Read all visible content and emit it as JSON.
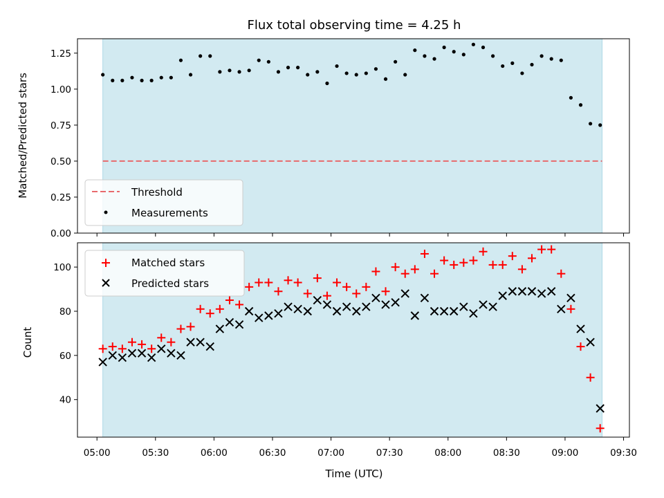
{
  "chart_data": [
    {
      "type": "scatter",
      "title": "Flux total observing time = 4.25 h",
      "ylabel": "Matched/Predicted stars",
      "xlabel": "",
      "ylim": [
        0,
        1.35
      ],
      "yticks": [
        "0.00",
        "0.25",
        "0.50",
        "0.75",
        "1.00",
        "1.25"
      ],
      "yticks_values": [
        0,
        0.25,
        0.5,
        0.75,
        1.0,
        1.25
      ],
      "xlim": [
        "04:50",
        "09:33"
      ],
      "observing_window": [
        "05:03",
        "09:19"
      ],
      "threshold": 0.5,
      "legend_location": "lower-left",
      "legend": [
        "Threshold",
        "Measurements"
      ],
      "series": [
        {
          "name": "Measurements",
          "color": "#000000",
          "marker": "dot",
          "x": [
            "05:03",
            "05:08",
            "05:13",
            "05:18",
            "05:23",
            "05:28",
            "05:33",
            "05:38",
            "05:43",
            "05:48",
            "05:53",
            "05:58",
            "06:03",
            "06:08",
            "06:13",
            "06:18",
            "06:23",
            "06:28",
            "06:33",
            "06:38",
            "06:43",
            "06:48",
            "06:53",
            "06:58",
            "07:03",
            "07:08",
            "07:13",
            "07:18",
            "07:23",
            "07:28",
            "07:33",
            "07:38",
            "07:43",
            "07:48",
            "07:53",
            "07:58",
            "08:03",
            "08:08",
            "08:13",
            "08:18",
            "08:23",
            "08:28",
            "08:33",
            "08:38",
            "08:43",
            "08:48",
            "08:53",
            "08:58",
            "09:03",
            "09:08",
            "09:13",
            "09:18"
          ],
          "y": [
            1.1,
            1.06,
            1.06,
            1.08,
            1.06,
            1.06,
            1.08,
            1.08,
            1.2,
            1.1,
            1.23,
            1.23,
            1.12,
            1.13,
            1.12,
            1.13,
            1.2,
            1.19,
            1.12,
            1.15,
            1.15,
            1.1,
            1.12,
            1.04,
            1.16,
            1.11,
            1.1,
            1.11,
            1.14,
            1.07,
            1.19,
            1.1,
            1.27,
            1.23,
            1.21,
            1.29,
            1.26,
            1.24,
            1.31,
            1.29,
            1.23,
            1.16,
            1.18,
            1.11,
            1.17,
            1.23,
            1.21,
            1.2,
            0.94,
            0.89,
            0.76,
            0.75
          ]
        }
      ]
    },
    {
      "type": "scatter",
      "title": "",
      "ylabel": "Count",
      "xlabel": "Time (UTC)",
      "ylim": [
        23,
        111
      ],
      "yticks": [
        "40",
        "60",
        "80",
        "100"
      ],
      "yticks_values": [
        40,
        60,
        80,
        100
      ],
      "xlim": [
        "04:50",
        "09:33"
      ],
      "xticks": [
        "05:00",
        "05:30",
        "06:00",
        "06:30",
        "07:00",
        "07:30",
        "08:00",
        "08:30",
        "09:00",
        "09:30"
      ],
      "observing_window": [
        "05:03",
        "09:19"
      ],
      "legend_location": "upper-left",
      "legend": [
        "Matched stars",
        "Predicted stars"
      ],
      "series": [
        {
          "name": "Matched stars",
          "color": "#ff0000",
          "marker": "plus",
          "x": [
            "05:03",
            "05:08",
            "05:13",
            "05:18",
            "05:23",
            "05:28",
            "05:33",
            "05:38",
            "05:43",
            "05:48",
            "05:53",
            "05:58",
            "06:03",
            "06:08",
            "06:13",
            "06:18",
            "06:23",
            "06:28",
            "06:33",
            "06:38",
            "06:43",
            "06:48",
            "06:53",
            "06:58",
            "07:03",
            "07:08",
            "07:13",
            "07:18",
            "07:23",
            "07:28",
            "07:33",
            "07:38",
            "07:43",
            "07:48",
            "07:53",
            "07:58",
            "08:03",
            "08:08",
            "08:13",
            "08:18",
            "08:23",
            "08:28",
            "08:33",
            "08:38",
            "08:43",
            "08:48",
            "08:53",
            "08:58",
            "09:03",
            "09:08",
            "09:13",
            "09:18"
          ],
          "y": [
            63,
            64,
            63,
            66,
            65,
            63,
            68,
            66,
            72,
            73,
            81,
            79,
            81,
            85,
            83,
            91,
            93,
            93,
            89,
            94,
            93,
            88,
            95,
            87,
            93,
            91,
            88,
            91,
            98,
            89,
            100,
            97,
            99,
            106,
            97,
            103,
            101,
            102,
            103,
            107,
            101,
            101,
            105,
            99,
            104,
            108,
            108,
            97,
            81,
            64,
            50,
            27
          ]
        },
        {
          "name": "Predicted stars",
          "color": "#000000",
          "marker": "x",
          "x": [
            "05:03",
            "05:08",
            "05:13",
            "05:18",
            "05:23",
            "05:28",
            "05:33",
            "05:38",
            "05:43",
            "05:48",
            "05:53",
            "05:58",
            "06:03",
            "06:08",
            "06:13",
            "06:18",
            "06:23",
            "06:28",
            "06:33",
            "06:38",
            "06:43",
            "06:48",
            "06:53",
            "06:58",
            "07:03",
            "07:08",
            "07:13",
            "07:18",
            "07:23",
            "07:28",
            "07:33",
            "07:38",
            "07:43",
            "07:48",
            "07:53",
            "07:58",
            "08:03",
            "08:08",
            "08:13",
            "08:18",
            "08:23",
            "08:28",
            "08:33",
            "08:38",
            "08:43",
            "08:48",
            "08:53",
            "08:58",
            "09:03",
            "09:08",
            "09:13",
            "09:18"
          ],
          "y": [
            57,
            60,
            59,
            61,
            61,
            59,
            63,
            61,
            60,
            66,
            66,
            64,
            72,
            75,
            74,
            80,
            77,
            78,
            79,
            82,
            81,
            80,
            85,
            83,
            80,
            82,
            80,
            82,
            86,
            83,
            84,
            88,
            78,
            86,
            80,
            80,
            80,
            82,
            79,
            83,
            82,
            87,
            89,
            89,
            89,
            88,
            89,
            81,
            86,
            72,
            66,
            36
          ]
        }
      ]
    }
  ],
  "colors": {
    "span_fill": "#add8e6",
    "threshold_line": "#e8696c",
    "matched": "#ff0000",
    "predicted": "#000000",
    "measurement": "#000000"
  }
}
